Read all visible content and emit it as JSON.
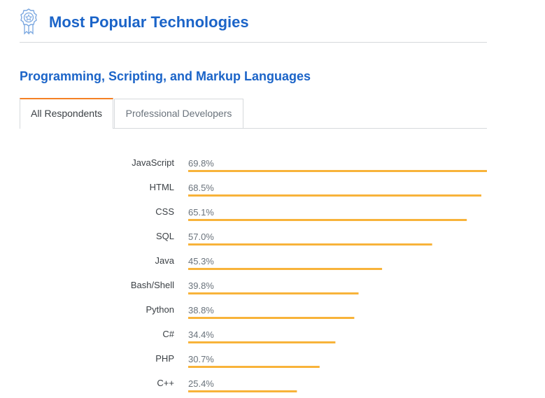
{
  "header": {
    "title": "Most Popular Technologies",
    "icon": "ribbon-badge-icon",
    "accent_color": "#1b64c8"
  },
  "section": {
    "title": "Programming, Scripting, and Markup Languages"
  },
  "tabs": [
    {
      "label": "All Respondents",
      "active": true
    },
    {
      "label": "Professional Developers",
      "active": false
    }
  ],
  "chart_data": {
    "type": "bar",
    "orientation": "horizontal",
    "categories": [
      "JavaScript",
      "HTML",
      "CSS",
      "SQL",
      "Java",
      "Bash/Shell",
      "Python",
      "C#",
      "PHP",
      "C++"
    ],
    "values": [
      69.8,
      68.5,
      65.1,
      57.0,
      45.3,
      39.8,
      38.8,
      34.4,
      30.7,
      25.4
    ],
    "value_labels": [
      "69.8%",
      "68.5%",
      "65.1%",
      "57.0%",
      "45.3%",
      "39.8%",
      "38.8%",
      "34.4%",
      "30.7%",
      "25.4%"
    ],
    "xlim": [
      0,
      69.8
    ],
    "bar_color": "#f8b33a",
    "grid": false,
    "legend": "none"
  }
}
